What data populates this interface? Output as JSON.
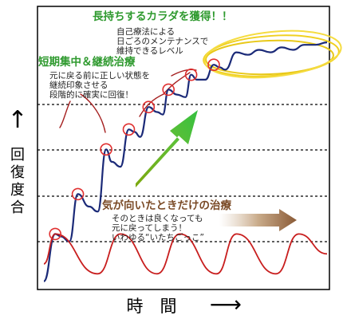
{
  "axes": {
    "y_label_chars": [
      "回",
      "復",
      "度",
      "合"
    ],
    "y_arrow": "↑",
    "x_label": "時　間",
    "x_arrow": "⟶"
  },
  "annotations": {
    "top": {
      "title": "長持ちするカラダを獲得！！",
      "lines": [
        "自己療法による",
        "日ごろのメンテナンスで",
        "維持できるレベル"
      ]
    },
    "middle": {
      "title": "短期集中＆継続治療",
      "lines": [
        "元に戻る前に正しい状態を",
        "継続印象させる",
        "段階的に確実に回復！"
      ]
    },
    "bottom": {
      "title": "気が向いたときだけの治療",
      "lines": [
        "そのときは良くなっても",
        "元に戻ってしまう！",
        "いわゆる“いたちごっこ”"
      ]
    }
  },
  "colors": {
    "blue_curve": "#1b2a78",
    "red_curve": "#c81e1e",
    "title_green": "#2f9a2f",
    "title_brown": "#7a4a26",
    "highlight_yellow": "#f0d020",
    "circle_red": "#e03030"
  },
  "chart_data": {
    "type": "line",
    "title": "",
    "xlabel": "時間",
    "ylabel": "回復度合",
    "grid": "dashed horizontal",
    "ylim": [
      0,
      1
    ],
    "series": [
      {
        "x": [
          0.0,
          0.04,
          0.06,
          0.09,
          0.12,
          0.16,
          0.19,
          0.22,
          0.24,
          0.27,
          0.3,
          0.32,
          0.34,
          0.37,
          0.4,
          0.42,
          0.44,
          0.47,
          0.5,
          0.52,
          0.54,
          0.57,
          0.6,
          0.62,
          0.64,
          0.68,
          0.72,
          0.76,
          0.8,
          0.84,
          0.88,
          0.92,
          0.96,
          1.0
        ],
        "y": [
          0.03,
          0.22,
          0.21,
          0.19,
          0.38,
          0.33,
          0.31,
          0.56,
          0.51,
          0.49,
          0.64,
          0.63,
          0.61,
          0.73,
          0.71,
          0.7,
          0.8,
          0.78,
          0.77,
          0.86,
          0.84,
          0.84,
          0.9,
          0.89,
          0.88,
          0.95,
          0.94,
          0.96,
          0.95,
          0.97,
          0.96,
          0.98,
          0.98,
          0.99
        ]
      },
      {
        "x": [
          0.0,
          0.04,
          0.19,
          0.27,
          0.4,
          0.48,
          0.61,
          0.68,
          0.82,
          0.9,
          1.0
        ],
        "y": [
          0.1,
          0.22,
          0.06,
          0.22,
          0.06,
          0.22,
          0.06,
          0.22,
          0.06,
          0.22,
          0.14
        ]
      }
    ]
  }
}
